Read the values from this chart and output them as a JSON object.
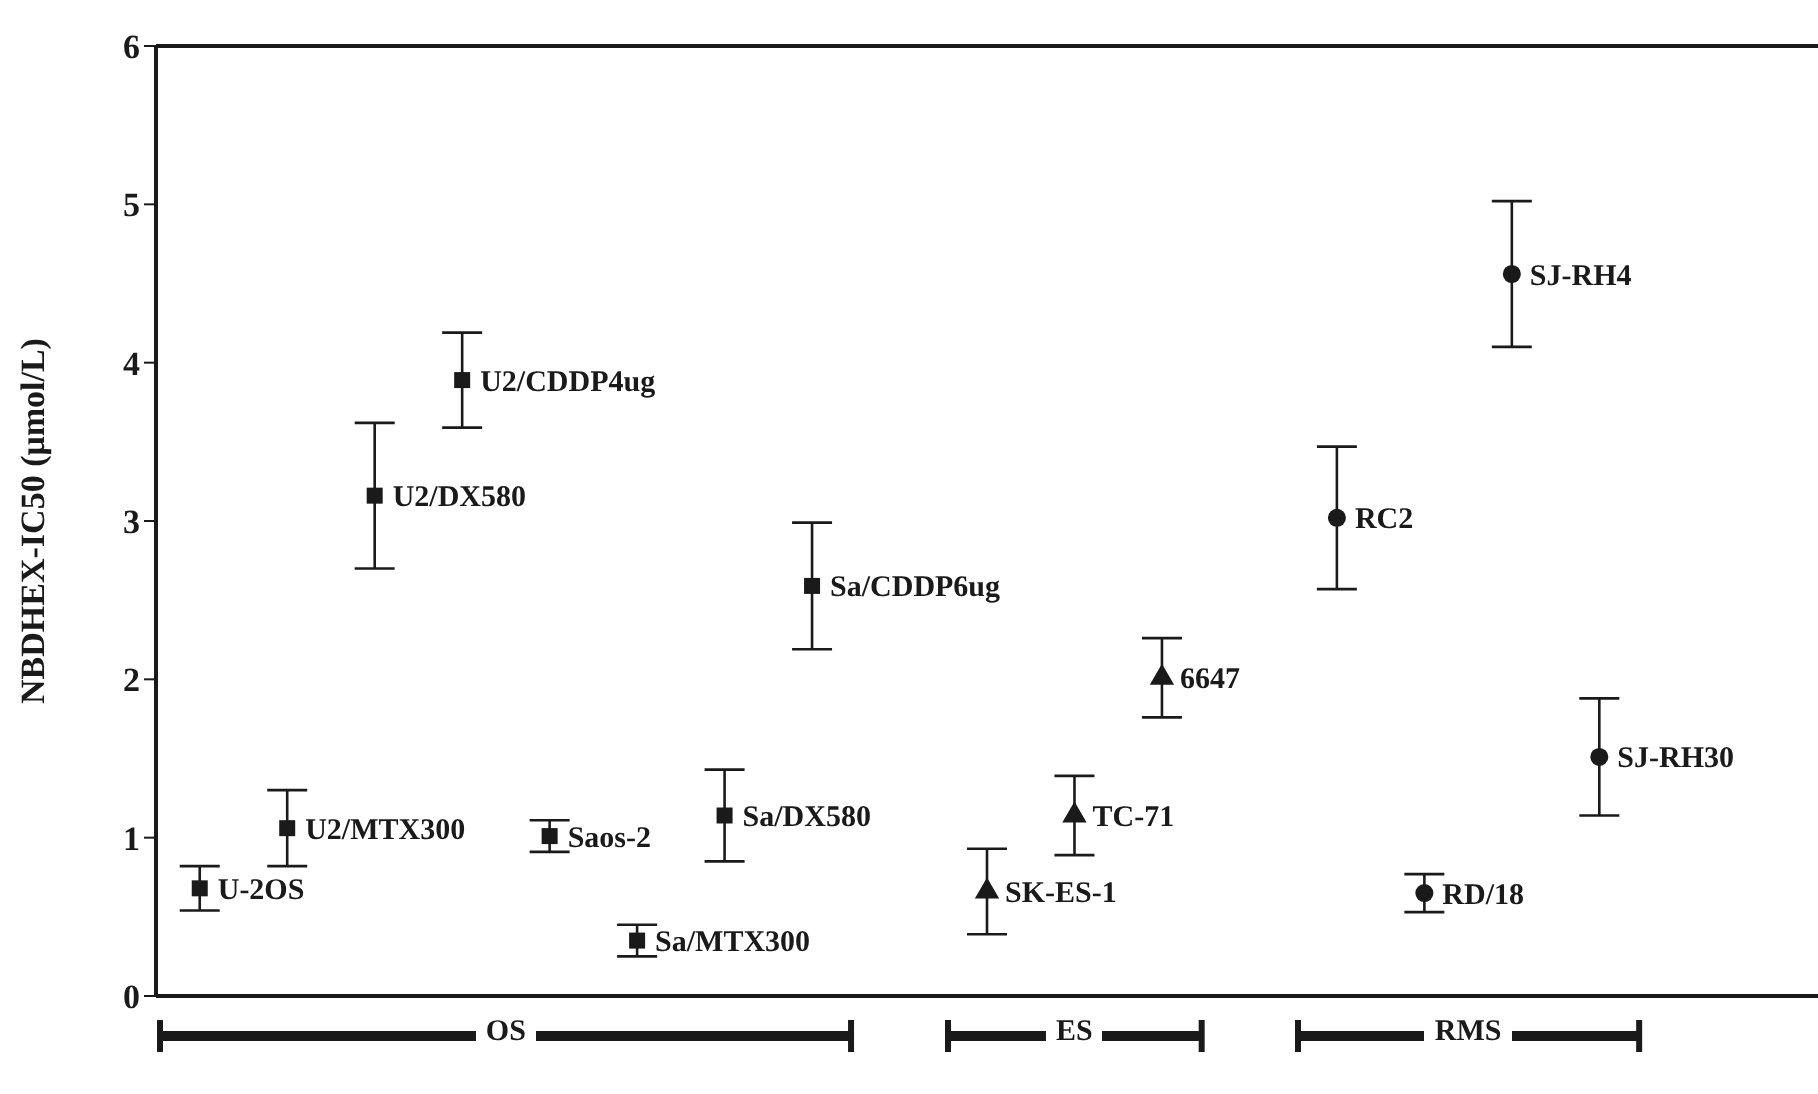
{
  "chart_data": {
    "type": "scatter",
    "ylabel": "NBDHEX-IC50 (μmol/L)",
    "categories": [
      null,
      null,
      null,
      null,
      null,
      null,
      null,
      null,
      null,
      null,
      null,
      null,
      null,
      null,
      null,
      null,
      null,
      null,
      null
    ],
    "annotations": [
      "OS",
      "ES",
      "RMS"
    ],
    "series": [
      {
        "name": "U-2OS",
        "color": "#1a1a1a",
        "marker": "square",
        "values": [
          0.68,
          null,
          null,
          null,
          null,
          null,
          null,
          null,
          null,
          null,
          null,
          null,
          null,
          null,
          null,
          null,
          null,
          null,
          null
        ],
        "errors": [
          0.14,
          null,
          null,
          null,
          null,
          null,
          null,
          null,
          null,
          null,
          null,
          null,
          null,
          null,
          null,
          null,
          null,
          null,
          null
        ]
      },
      {
        "name": "U2/MTX300",
        "color": "#1a1a1a",
        "marker": "square",
        "values": [
          null,
          1.06,
          null,
          null,
          null,
          null,
          null,
          null,
          null,
          null,
          null,
          null,
          null,
          null,
          null,
          null,
          null,
          null,
          null
        ],
        "errors": [
          null,
          0.24,
          null,
          null,
          null,
          null,
          null,
          null,
          null,
          null,
          null,
          null,
          null,
          null,
          null,
          null,
          null,
          null,
          null
        ]
      },
      {
        "name": "U2/DX580",
        "color": "#1a1a1a",
        "marker": "square",
        "values": [
          null,
          null,
          3.16,
          null,
          null,
          null,
          null,
          null,
          null,
          null,
          null,
          null,
          null,
          null,
          null,
          null,
          null,
          null,
          null
        ],
        "errors": [
          null,
          null,
          0.46,
          null,
          null,
          null,
          null,
          null,
          null,
          null,
          null,
          null,
          null,
          null,
          null,
          null,
          null,
          null,
          null
        ]
      },
      {
        "name": "U2/CDDP4ug",
        "color": "#1a1a1a",
        "marker": "square",
        "values": [
          null,
          null,
          null,
          3.89,
          null,
          null,
          null,
          null,
          null,
          null,
          null,
          null,
          null,
          null,
          null,
          null,
          null,
          null,
          null
        ],
        "errors": [
          null,
          null,
          null,
          0.3,
          null,
          null,
          null,
          null,
          null,
          null,
          null,
          null,
          null,
          null,
          null,
          null,
          null,
          null,
          null
        ]
      },
      {
        "name": "Saos-2",
        "color": "#1a1a1a",
        "marker": "square",
        "values": [
          null,
          null,
          null,
          null,
          1.01,
          null,
          null,
          null,
          null,
          null,
          null,
          null,
          null,
          null,
          null,
          null,
          null,
          null,
          null
        ],
        "errors": [
          null,
          null,
          null,
          null,
          0.1,
          null,
          null,
          null,
          null,
          null,
          null,
          null,
          null,
          null,
          null,
          null,
          null,
          null,
          null
        ]
      },
      {
        "name": "Sa/MTX300",
        "color": "#1a1a1a",
        "marker": "square",
        "values": [
          null,
          null,
          null,
          null,
          null,
          0.35,
          null,
          null,
          null,
          null,
          null,
          null,
          null,
          null,
          null,
          null,
          null,
          null,
          null
        ],
        "errors": [
          null,
          null,
          null,
          null,
          null,
          0.1,
          null,
          null,
          null,
          null,
          null,
          null,
          null,
          null,
          null,
          null,
          null,
          null,
          null
        ]
      },
      {
        "name": "Sa/DX580",
        "color": "#1a1a1a",
        "marker": "square",
        "values": [
          null,
          null,
          null,
          null,
          null,
          null,
          1.14,
          null,
          null,
          null,
          null,
          null,
          null,
          null,
          null,
          null,
          null,
          null,
          null
        ],
        "errors": [
          null,
          null,
          null,
          null,
          null,
          null,
          0.29,
          null,
          null,
          null,
          null,
          null,
          null,
          null,
          null,
          null,
          null,
          null,
          null
        ]
      },
      {
        "name": "Sa/CDDP6ug",
        "color": "#1a1a1a",
        "marker": "square",
        "values": [
          null,
          null,
          null,
          null,
          null,
          null,
          null,
          2.59,
          null,
          null,
          null,
          null,
          null,
          null,
          null,
          null,
          null,
          null,
          null
        ],
        "errors": [
          null,
          null,
          null,
          null,
          null,
          null,
          null,
          0.4,
          null,
          null,
          null,
          null,
          null,
          null,
          null,
          null,
          null,
          null,
          null
        ]
      },
      {
        "name": "SK-ES-1",
        "color": "#1a1a1a",
        "marker": "triangle",
        "values": [
          null,
          null,
          null,
          null,
          null,
          null,
          null,
          null,
          null,
          0.66,
          null,
          null,
          null,
          null,
          null,
          null,
          null,
          null,
          null
        ],
        "errors": [
          null,
          null,
          null,
          null,
          null,
          null,
          null,
          null,
          null,
          0.27,
          null,
          null,
          null,
          null,
          null,
          null,
          null,
          null,
          null
        ]
      },
      {
        "name": "TC-71",
        "color": "#1a1a1a",
        "marker": "triangle",
        "values": [
          null,
          null,
          null,
          null,
          null,
          null,
          null,
          null,
          null,
          null,
          1.14,
          null,
          null,
          null,
          null,
          null,
          null,
          null,
          null
        ],
        "errors": [
          null,
          null,
          null,
          null,
          null,
          null,
          null,
          null,
          null,
          null,
          0.25,
          null,
          null,
          null,
          null,
          null,
          null,
          null,
          null
        ]
      },
      {
        "name": "6647",
        "color": "#1a1a1a",
        "marker": "triangle",
        "values": [
          null,
          null,
          null,
          null,
          null,
          null,
          null,
          null,
          null,
          null,
          null,
          2.01,
          null,
          null,
          null,
          null,
          null,
          null,
          null
        ],
        "errors": [
          null,
          null,
          null,
          null,
          null,
          null,
          null,
          null,
          null,
          null,
          null,
          0.25,
          null,
          null,
          null,
          null,
          null,
          null,
          null
        ]
      },
      {
        "name": "RC2",
        "color": "#1a1a1a",
        "marker": "circle",
        "values": [
          null,
          null,
          null,
          null,
          null,
          null,
          null,
          null,
          null,
          null,
          null,
          null,
          null,
          3.02,
          null,
          null,
          null,
          null,
          null
        ],
        "errors": [
          null,
          null,
          null,
          null,
          null,
          null,
          null,
          null,
          null,
          null,
          null,
          null,
          null,
          0.45,
          null,
          null,
          null,
          null,
          null
        ]
      },
      {
        "name": "RD/18",
        "color": "#1a1a1a",
        "marker": "circle",
        "values": [
          null,
          null,
          null,
          null,
          null,
          null,
          null,
          null,
          null,
          null,
          null,
          null,
          null,
          null,
          0.65,
          null,
          null,
          null,
          null
        ],
        "errors": [
          null,
          null,
          null,
          null,
          null,
          null,
          null,
          null,
          null,
          null,
          null,
          null,
          null,
          null,
          0.12,
          null,
          null,
          null,
          null
        ]
      },
      {
        "name": "SJ-RH4",
        "color": "#1a1a1a",
        "marker": "circle",
        "values": [
          null,
          null,
          null,
          null,
          null,
          null,
          null,
          null,
          null,
          null,
          null,
          null,
          null,
          null,
          null,
          4.56,
          null,
          null,
          null
        ],
        "errors": [
          null,
          null,
          null,
          null,
          null,
          null,
          null,
          null,
          null,
          null,
          null,
          null,
          null,
          null,
          null,
          0.46,
          null,
          null,
          null
        ]
      },
      {
        "name": "SJ-RH30",
        "color": "#1a1a1a",
        "marker": "circle",
        "values": [
          null,
          null,
          null,
          null,
          null,
          null,
          null,
          null,
          null,
          null,
          null,
          null,
          null,
          null,
          null,
          null,
          1.51,
          null,
          null
        ],
        "errors": [
          null,
          null,
          null,
          null,
          null,
          null,
          null,
          null,
          null,
          null,
          null,
          null,
          null,
          null,
          null,
          null,
          0.37,
          null,
          null
        ]
      }
    ],
    "ylim": [
      0,
      6
    ],
    "yticks": [
      0,
      1,
      2,
      3,
      4,
      5,
      6
    ],
    "grid": false,
    "legend": false,
    "tick_labels": "y"
  }
}
